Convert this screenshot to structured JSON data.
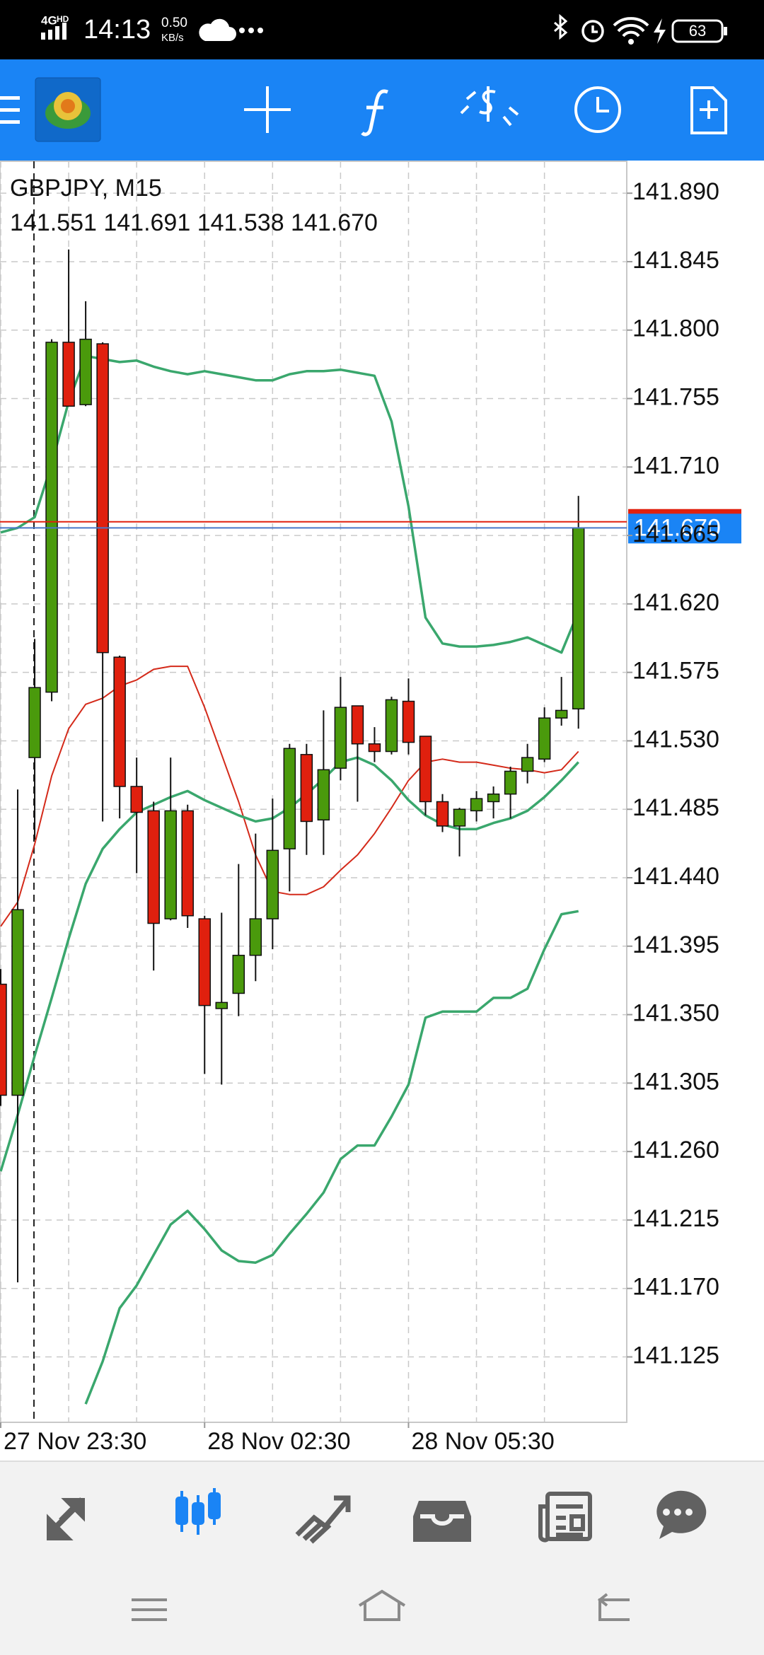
{
  "status_bar": {
    "network": "4G",
    "network_sub": "HD",
    "time": "14:13",
    "speed": "0.50",
    "speed_unit": "KB/s",
    "battery": "63"
  },
  "chart_data": {
    "type": "candlestick",
    "title": "GBPJPY, M15",
    "subtitle": "141.551 141.691 141.538 141.670",
    "categories": [
      "27 Nov 23:30",
      null,
      null,
      null,
      null,
      null,
      null,
      null,
      null,
      null,
      null,
      null,
      "28 Nov 02:30",
      null,
      null,
      null,
      null,
      null,
      null,
      null,
      null,
      null,
      null,
      null,
      "28 Nov 05:30",
      null,
      null,
      null,
      null,
      null,
      null,
      null,
      null,
      null,
      null
    ],
    "open": [
      141.37,
      141.297,
      141.519,
      141.562,
      141.792,
      141.751,
      141.791,
      141.585,
      141.5,
      141.484,
      141.413,
      141.484,
      141.413,
      141.354,
      141.364,
      141.389,
      141.413,
      141.459,
      141.521,
      141.478,
      141.512,
      141.553,
      141.528,
      141.523,
      141.556,
      141.533,
      141.49,
      141.474,
      141.484,
      141.49,
      141.495,
      141.51,
      141.518,
      141.545,
      141.551
    ],
    "high": [
      141.38,
      141.498,
      141.597,
      141.794,
      141.853,
      141.819,
      141.792,
      141.586,
      141.519,
      141.49,
      141.519,
      141.488,
      141.415,
      141.417,
      141.449,
      141.469,
      141.492,
      141.528,
      141.528,
      141.55,
      141.572,
      141.553,
      141.539,
      141.559,
      141.571,
      141.533,
      141.495,
      141.486,
      141.497,
      141.5,
      141.513,
      141.528,
      141.552,
      141.572,
      141.691
    ],
    "low": [
      141.29,
      141.174,
      141.465,
      141.556,
      141.75,
      141.75,
      141.477,
      141.479,
      141.443,
      141.379,
      141.412,
      141.407,
      141.311,
      141.304,
      141.349,
      141.372,
      141.393,
      141.431,
      141.455,
      141.455,
      141.504,
      141.49,
      141.516,
      141.521,
      141.521,
      141.481,
      141.47,
      141.454,
      141.477,
      141.479,
      141.479,
      141.502,
      141.516,
      141.54,
      141.538
    ],
    "close": [
      141.297,
      141.419,
      141.565,
      141.792,
      141.75,
      141.794,
      141.588,
      141.5,
      141.483,
      141.41,
      141.484,
      141.415,
      141.356,
      141.358,
      141.389,
      141.413,
      141.458,
      141.525,
      141.477,
      141.511,
      141.552,
      141.528,
      141.523,
      141.557,
      141.529,
      141.49,
      141.474,
      141.485,
      141.492,
      141.495,
      141.51,
      141.519,
      141.545,
      141.55,
      141.67
    ],
    "up_color": "#4a9a0c",
    "down_color": "#e0200e",
    "indicators": [
      {
        "color": "#3aa76d",
        "values": [
          141.667,
          141.67,
          141.677,
          141.712,
          141.753,
          141.783,
          141.781,
          141.779,
          141.78,
          141.776,
          141.773,
          141.771,
          141.773,
          141.771,
          141.769,
          141.767,
          141.767,
          141.771,
          141.773,
          141.773,
          141.774,
          141.772,
          141.77,
          141.74,
          141.684,
          141.611,
          141.594,
          141.592,
          141.592,
          141.593,
          141.595,
          141.598,
          141.593,
          141.588,
          141.615
        ]
      },
      {
        "color": "#d42a1a",
        "values": [
          141.408,
          141.424,
          141.462,
          141.507,
          141.538,
          141.554,
          141.558,
          141.566,
          141.57,
          141.577,
          141.579,
          141.579,
          141.552,
          141.521,
          141.49,
          141.455,
          141.431,
          141.429,
          141.429,
          141.434,
          141.445,
          141.455,
          141.469,
          141.486,
          141.504,
          141.516,
          141.518,
          141.516,
          141.516,
          141.514,
          141.512,
          141.511,
          141.509,
          141.511,
          141.523
        ]
      },
      {
        "color": "#3aa76d",
        "values": [
          141.247,
          141.284,
          141.323,
          141.361,
          141.4,
          141.436,
          141.459,
          141.472,
          141.483,
          141.488,
          141.493,
          141.497,
          141.491,
          141.486,
          141.481,
          141.477,
          141.479,
          141.486,
          141.495,
          141.505,
          141.516,
          141.519,
          141.514,
          141.504,
          141.491,
          141.481,
          141.475,
          141.472,
          141.472,
          141.476,
          141.479,
          141.484,
          141.493,
          141.504,
          141.516
        ]
      },
      {
        "color": "#3aa76d",
        "values": [
          null,
          null,
          null,
          null,
          null,
          141.094,
          141.122,
          141.157,
          141.172,
          141.192,
          141.212,
          141.221,
          141.209,
          141.195,
          141.188,
          141.187,
          141.192,
          141.206,
          141.219,
          141.233,
          141.255,
          141.264,
          141.264,
          141.283,
          141.304,
          141.348,
          141.352,
          141.352,
          141.352,
          141.361,
          141.361,
          141.367,
          141.393,
          141.416,
          141.418
        ]
      }
    ],
    "ask": 141.674,
    "bid": {
      "value": 141.67,
      "label": "141.670"
    },
    "ylim": [
      141.082,
      141.911
    ],
    "yticks": [
      {
        "value": 141.89,
        "label": "141.890"
      },
      {
        "value": 141.845,
        "label": "141.845"
      },
      {
        "value": 141.8,
        "label": "141.800"
      },
      {
        "value": 141.755,
        "label": "141.755"
      },
      {
        "value": 141.71,
        "label": "141.710"
      },
      {
        "value": 141.665,
        "label": "141.665"
      },
      {
        "value": 141.62,
        "label": "141.620"
      },
      {
        "value": 141.575,
        "label": "141.575"
      },
      {
        "value": 141.53,
        "label": "141.530"
      },
      {
        "value": 141.485,
        "label": "141.485"
      },
      {
        "value": 141.44,
        "label": "141.440"
      },
      {
        "value": 141.395,
        "label": "141.395"
      },
      {
        "value": 141.35,
        "label": "141.350"
      },
      {
        "value": 141.305,
        "label": "141.305"
      },
      {
        "value": 141.26,
        "label": "141.260"
      },
      {
        "value": 141.215,
        "label": "141.215"
      },
      {
        "value": 141.17,
        "label": "141.170"
      },
      {
        "value": 141.125,
        "label": "141.125"
      }
    ],
    "grid": true
  }
}
